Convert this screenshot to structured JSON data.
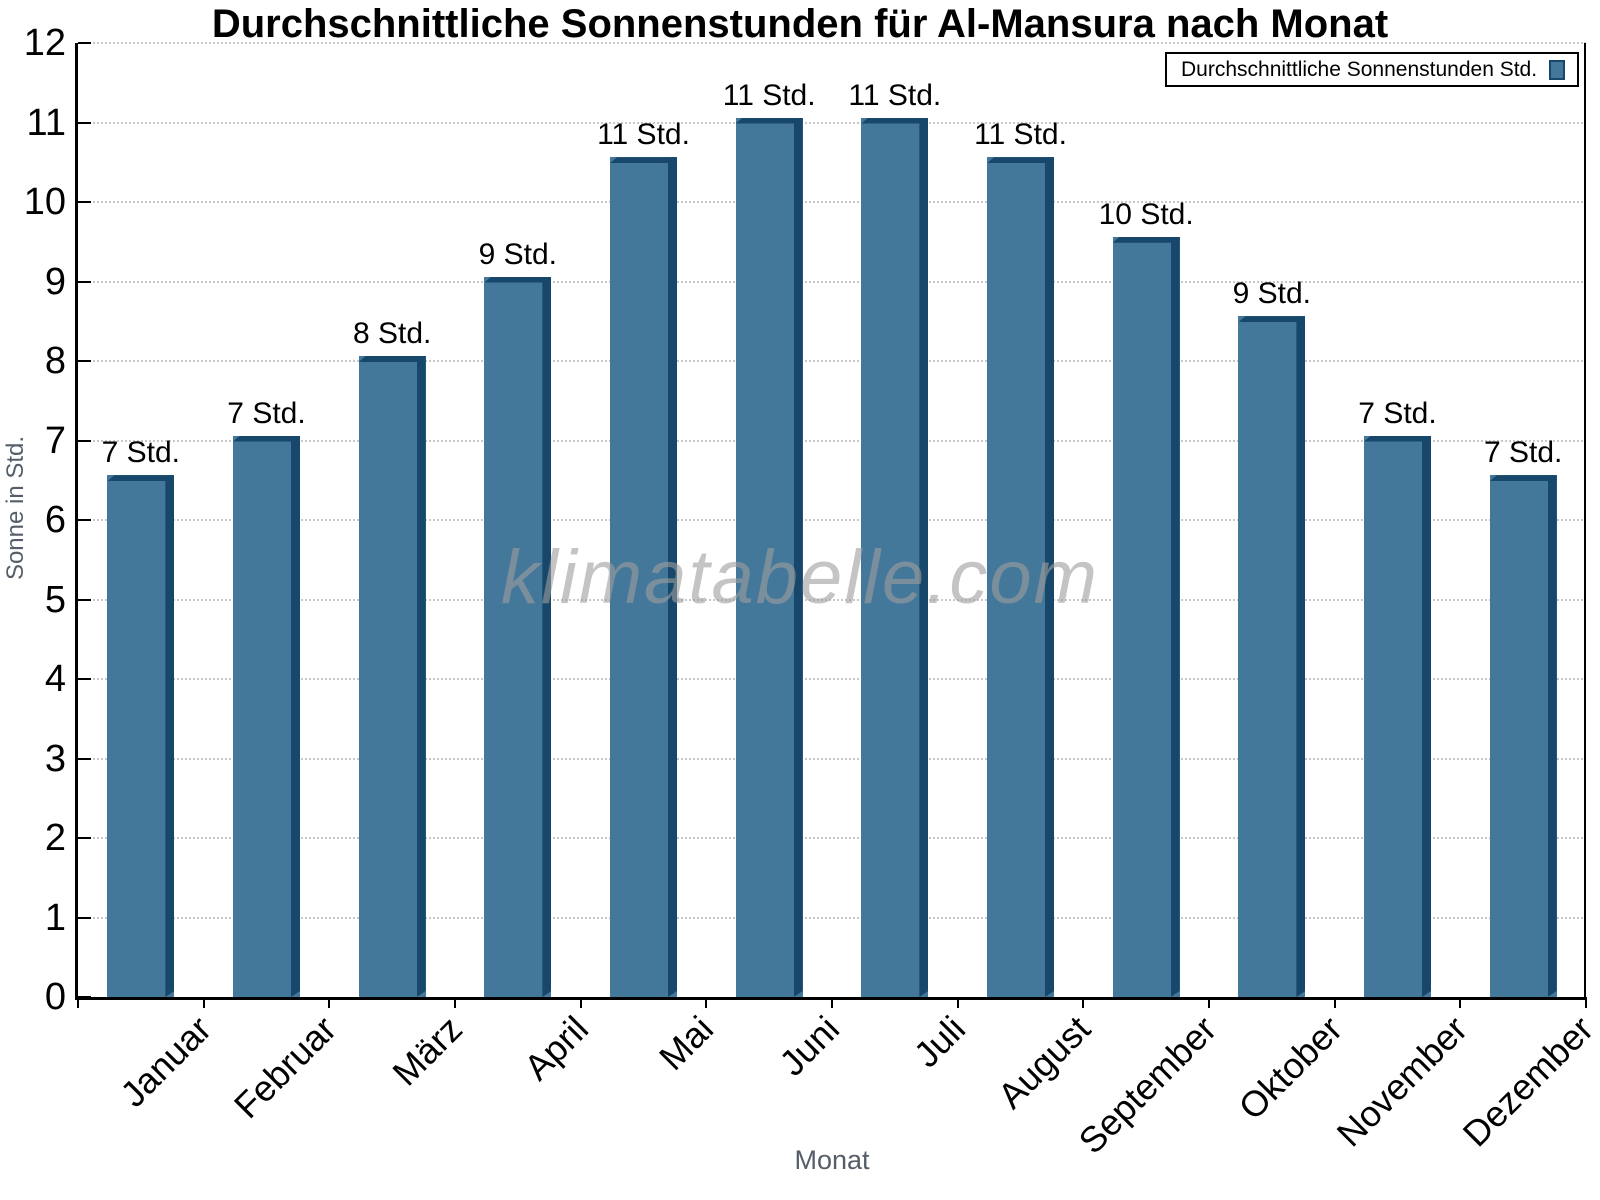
{
  "chart_data": {
    "type": "bar",
    "title": "Durchschnittliche Sonnenstunden für Al-Mansura nach Monat",
    "xlabel": "Monat",
    "ylabel": "Sonne in Std.",
    "watermark": "klimatabelle.com",
    "legend": {
      "label": "Durchschnittliche Sonnenstunden Std.",
      "position": "top-right"
    },
    "categories": [
      "Januar",
      "Februar",
      "März",
      "April",
      "Mai",
      "Juni",
      "Juli",
      "August",
      "September",
      "Oktober",
      "November",
      "Dezember"
    ],
    "series": [
      {
        "name": "Durchschnittliche Sonnenstunden Std.",
        "values": [
          6.5,
          7,
          8,
          9,
          10.5,
          11,
          11,
          10.5,
          9.5,
          8.5,
          7,
          6.5
        ],
        "bar_labels": [
          "7 Std.",
          "7 Std.",
          "8 Std.",
          "9 Std.",
          "11 Std.",
          "11 Std.",
          "11 Std.",
          "11 Std.",
          "10 Std.",
          "9 Std.",
          "7 Std.",
          "7 Std."
        ]
      }
    ],
    "ylim": [
      0,
      12
    ],
    "ytick_step": 1,
    "yticks": [
      0,
      1,
      2,
      3,
      4,
      5,
      6,
      7,
      8,
      9,
      10,
      11,
      12
    ],
    "grid": true,
    "legend_position": "top-right",
    "colors": {
      "bar_face": "#44789B",
      "bar_shadow": "#17486B",
      "grid": "#c8c8c8",
      "axis": "#000000",
      "axis_label_gray": "#555e68",
      "watermark": "#9e9e9e"
    }
  }
}
